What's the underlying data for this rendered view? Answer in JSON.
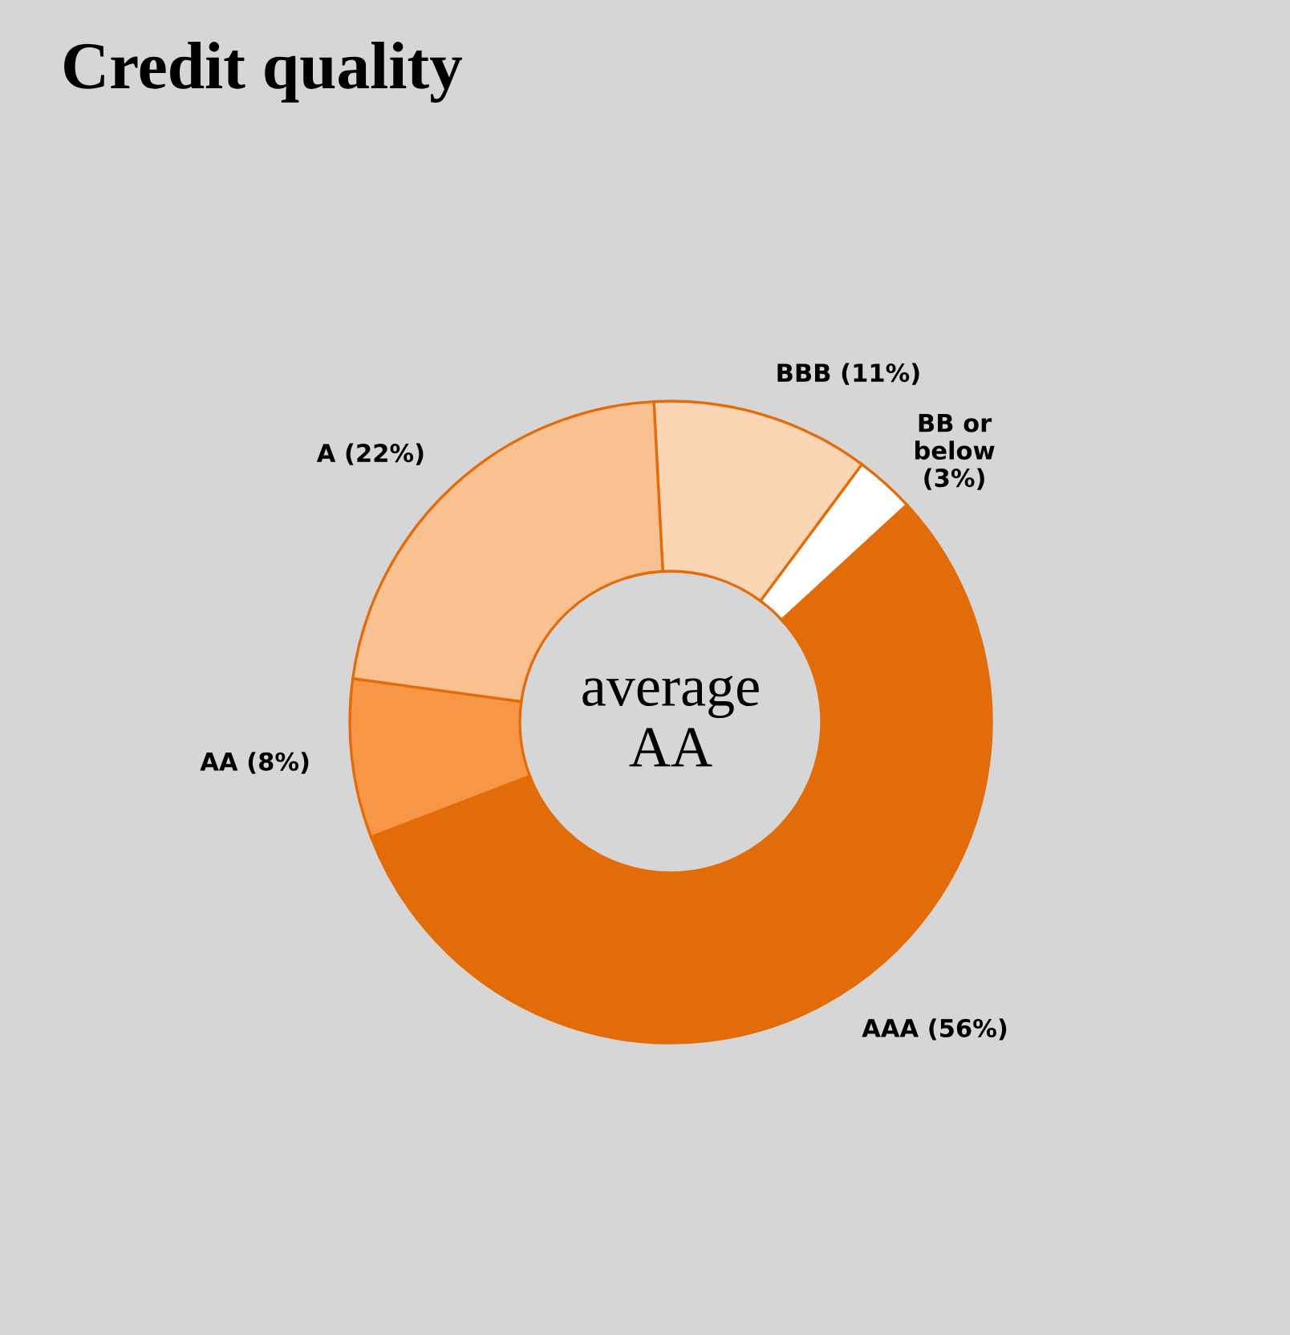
{
  "chart_data": {
    "type": "donut",
    "title": "Credit quality",
    "categories": [
      "BBB (11%)",
      "BB or\nbelow\n(3%)",
      "AAA (56%)",
      "AA (8%)",
      "A (22%)"
    ],
    "values": [
      11,
      3,
      56,
      8,
      22
    ],
    "colors": [
      "#fcd5b5",
      "#ffffff",
      "#e36c0a",
      "#f79646",
      "#fac090"
    ],
    "annotations": [
      "average\nAA"
    ],
    "legend": false
  }
}
